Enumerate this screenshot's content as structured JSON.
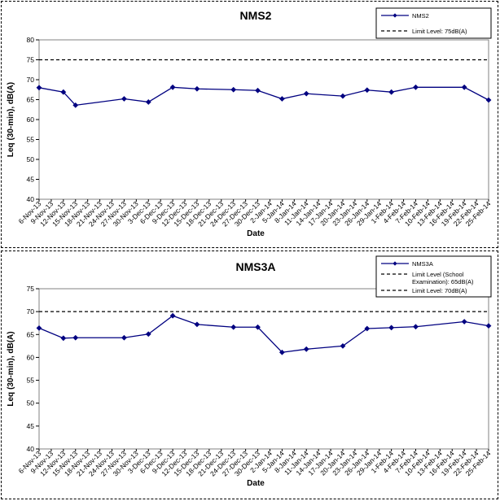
{
  "chart_data": [
    {
      "type": "line",
      "title": "NMS2",
      "xlabel": "Date",
      "ylabel": "Leq (30-min), dB(A)",
      "ylim": [
        40,
        80
      ],
      "yticks": [
        40,
        45,
        50,
        55,
        60,
        65,
        70,
        75,
        80
      ],
      "categories": [
        "6-Nov-13",
        "9-Nov-13",
        "12-Nov-13",
        "15-Nov-13",
        "18-Nov-13",
        "21-Nov-13",
        "24-Nov-13",
        "27-Nov-13",
        "30-Nov-13",
        "3-Dec-13",
        "6-Dec-13",
        "9-Dec-13",
        "12-Dec-13",
        "15-Dec-13",
        "18-Dec-13",
        "21-Dec-13",
        "24-Dec-13",
        "27-Dec-13",
        "30-Dec-13",
        "2-Jan-14",
        "5-Jan-14",
        "8-Jan-14",
        "11-Jan-14",
        "14-Jan-14",
        "17-Jan-14",
        "20-Jan-14",
        "23-Jan-14",
        "26-Jan-14",
        "29-Jan-14",
        "1-Feb-14",
        "4-Feb-14",
        "7-Feb-14",
        "10-Feb-14",
        "13-Feb-14",
        "16-Feb-14",
        "19-Feb-14",
        "22-Feb-14",
        "25-Feb-14"
      ],
      "series": [
        {
          "name": "NMS2",
          "color": "#000080",
          "points": [
            {
              "x": "6-Nov-13",
              "y": 68.0
            },
            {
              "x": "12-Nov-13",
              "y": 66.9
            },
            {
              "x": "15-Nov-13",
              "y": 63.6
            },
            {
              "x": "27-Nov-13",
              "y": 65.2
            },
            {
              "x": "3-Dec-13",
              "y": 64.4
            },
            {
              "x": "9-Dec-13",
              "y": 68.1
            },
            {
              "x": "15-Dec-13",
              "y": 67.7
            },
            {
              "x": "24-Dec-13",
              "y": 67.5
            },
            {
              "x": "30-Dec-13",
              "y": 67.3
            },
            {
              "x": "5-Jan-14",
              "y": 65.2
            },
            {
              "x": "11-Jan-14",
              "y": 66.5
            },
            {
              "x": "20-Jan-14",
              "y": 65.9
            },
            {
              "x": "26-Jan-14",
              "y": 67.4
            },
            {
              "x": "1-Feb-14",
              "y": 66.9
            },
            {
              "x": "7-Feb-14",
              "y": 68.1
            },
            {
              "x": "19-Feb-14",
              "y": 68.1
            },
            {
              "x": "25-Feb-14",
              "y": 64.9
            }
          ]
        }
      ],
      "limits": [
        {
          "label": "Limit Level: 75dB(A)",
          "value": 75
        }
      ],
      "legend": [
        "NMS2",
        "Limit Level: 75dB(A)"
      ],
      "legend_position": "top-right"
    },
    {
      "type": "line",
      "title": "NMS3A",
      "xlabel": "Date",
      "ylabel": "Leq (30-min), dB(A)",
      "ylim": [
        40,
        75
      ],
      "yticks": [
        40,
        45,
        50,
        55,
        60,
        65,
        70,
        75
      ],
      "categories": [
        "6-Nov-13",
        "9-Nov-13",
        "12-Nov-13",
        "15-Nov-13",
        "18-Nov-13",
        "21-Nov-13",
        "24-Nov-13",
        "27-Nov-13",
        "30-Nov-13",
        "3-Dec-13",
        "6-Dec-13",
        "9-Dec-13",
        "12-Dec-13",
        "15-Dec-13",
        "18-Dec-13",
        "21-Dec-13",
        "24-Dec-13",
        "27-Dec-13",
        "30-Dec-13",
        "2-Jan-14",
        "5-Jan-14",
        "8-Jan-14",
        "11-Jan-14",
        "14-Jan-14",
        "17-Jan-14",
        "20-Jan-14",
        "23-Jan-14",
        "26-Jan-14",
        "29-Jan-14",
        "1-Feb-14",
        "4-Feb-14",
        "7-Feb-14",
        "10-Feb-14",
        "13-Feb-14",
        "16-Feb-14",
        "19-Feb-14",
        "22-Feb-14",
        "25-Feb-14"
      ],
      "series": [
        {
          "name": "NMS3A",
          "color": "#000080",
          "points": [
            {
              "x": "6-Nov-13",
              "y": 66.4
            },
            {
              "x": "12-Nov-13",
              "y": 64.2
            },
            {
              "x": "15-Nov-13",
              "y": 64.3
            },
            {
              "x": "27-Nov-13",
              "y": 64.3
            },
            {
              "x": "3-Dec-13",
              "y": 65.1
            },
            {
              "x": "9-Dec-13",
              "y": 69.1
            },
            {
              "x": "15-Dec-13",
              "y": 67.2
            },
            {
              "x": "24-Dec-13",
              "y": 66.6
            },
            {
              "x": "30-Dec-13",
              "y": 66.6
            },
            {
              "x": "5-Jan-14",
              "y": 61.1
            },
            {
              "x": "11-Jan-14",
              "y": 61.8
            },
            {
              "x": "20-Jan-14",
              "y": 62.5
            },
            {
              "x": "26-Jan-14",
              "y": 66.3
            },
            {
              "x": "1-Feb-14",
              "y": 66.5
            },
            {
              "x": "7-Feb-14",
              "y": 66.7
            },
            {
              "x": "19-Feb-14",
              "y": 67.8
            },
            {
              "x": "25-Feb-14",
              "y": 66.9
            }
          ]
        }
      ],
      "limits": [
        {
          "label": "Limit Level (School Examination): 65dB(A)",
          "value": 65,
          "drawn": false
        },
        {
          "label": "Limit Level: 70dB(A)",
          "value": 70
        }
      ],
      "legend": [
        "NMS3A",
        "Limit Level (School Examination): 65dB(A)",
        "Limit Level: 70dB(A)"
      ],
      "legend_position": "top-right"
    }
  ]
}
